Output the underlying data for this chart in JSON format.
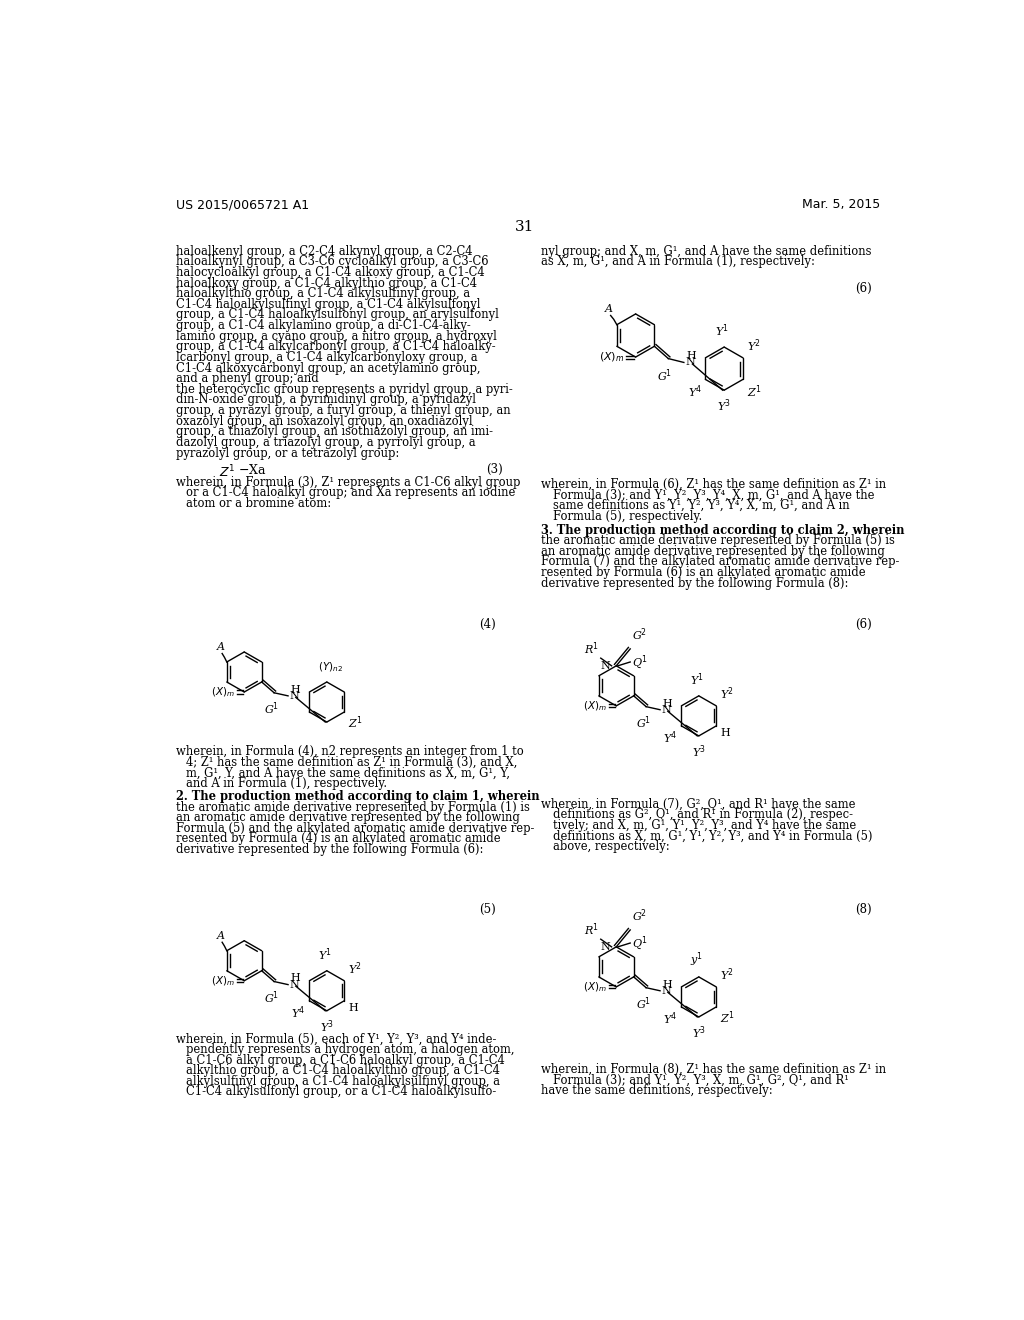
{
  "page_number": "31",
  "patent_number": "US 2015/0065721 A1",
  "patent_date": "Mar. 5, 2015",
  "background_color": "#ffffff",
  "left_column_text": [
    "haloalkenyl group, a C2-C4 alkynyl group, a C2-C4",
    "haloalkynyl group, a C3-C6 cycloalkyl group, a C3-C6",
    "halocycloalkyl group, a C1-C4 alkoxy group, a C1-C4",
    "haloalkoxy group, a C1-C4 alkylthio group, a C1-C4",
    "haloalkylthio group, a C1-C4 alkylsulfinyl group, a",
    "C1-C4 haloalkylsulfinyl group, a C1-C4 alkylsulfonyl",
    "group, a C1-C4 haloalkylsulfonyl group, an arylsulfonyl",
    "group, a C1-C4 alkylamino group, a di-C1-C4-alky-",
    "lamino group, a cyano group, a nitro group, a hydroxyl",
    "group, a C1-C4 alkylcarbonyl group, a C1-C4 haloalky-",
    "lcarbonyl group, a C1-C4 alkylcarbonyloxy group, a",
    "C1-C4 alkoxycarbonyl group, an acetylamino group,",
    "and a phenyl group; and",
    "the heterocyclic group represents a pyridyl group, a pyri-",
    "din-N-oxide group, a pyrimidinyl group, a pyridazyl",
    "group, a pyrazyl group, a furyl group, a thienyl group, an",
    "oxazolyl group, an isoxazolyl group, an oxadiazolyl",
    "group, a thiazolyl group, an isothiazolyl group, an imi-",
    "dazolyl group, a triazolyl group, a pyrrolyl group, a",
    "pyrazolyl group, or a tetrazolyl group:"
  ],
  "right_col_top": [
    "nyl group; and X, m, G¹, and A have the same definitions",
    "as X, m, G¹, and A in Formula (1), respectively:"
  ],
  "formula6_caption": [
    "wherein, in Formula (6), Z¹ has the same definition as Z¹ in",
    "Formula (3); and Y¹, Y², Y³, Y⁴, X, m, G¹, and A have the",
    "same definitions as Y¹, Y², Y³, Y⁴, X, m, G¹, and A in",
    "Formula (5), respectively."
  ],
  "claim3_text": [
    "3. The production method according to claim 2, wherein",
    "the aromatic amide derivative represented by Formula (5) is",
    "an aromatic amide derivative represented by the following",
    "Formula (7) and the alkylated aromatic amide derivative rep-",
    "resented by Formula (6) is an alkylated aromatic amide",
    "derivative represented by the following Formula (8):"
  ],
  "formula4_desc": [
    "wherein, in Formula (4), n2 represents an integer from 1 to",
    "4; Z¹ has the same definition as Z¹ in Formula (3), and X,",
    "m, G¹, Y, and A have the same definitions as X, m, G¹, Y,",
    "and A in Formula (1), respectively."
  ],
  "claim2_text": [
    "2. The production method according to claim 1, wherein",
    "the aromatic amide derivative represented by Formula (1) is",
    "an aromatic amide derivative represented by the following",
    "Formula (5) and the alkylated aromatic amide derivative rep-",
    "resented by Formula (4) is an alkylated aromatic amide",
    "derivative represented by the following Formula (6):"
  ],
  "formula5_desc": [
    "wherein, in Formula (5), each of Y¹, Y², Y³, and Y⁴ inde-",
    "pendently represents a hydrogen atom, a halogen atom,",
    "a C1-C6 alkyl group, a C1-C6 haloalkyl group, a C1-C4",
    "alkylthio group, a C1-C4 haloalkylthio group, a C1-C4",
    "alkylsulfinyl group, a C1-C4 haloalkylsulfinyl group, a",
    "C1-C4 alkylsulfonyl group, or a C1-C4 haloalkylsulfo-"
  ],
  "formula7_caption": [
    "wherein, in Formula (7), G², Q¹, and R¹ have the same",
    "definitions as G², Q¹, and R¹ in Formula (2), respec-",
    "tively; and X, m, G¹, Y¹, Y², Y³, and Y⁴ have the same",
    "definitions as X, m, G¹, Y¹, Y², Y³, and Y⁴ in Formula (5)",
    "above, respectively:"
  ],
  "formula8_desc": [
    "wherein, in Formula (8), Z¹ has the same definition as Z¹ in",
    "Formula (3); and Y¹, Y², Y³, X, m, G¹, G², Q¹, and R¹"
  ]
}
